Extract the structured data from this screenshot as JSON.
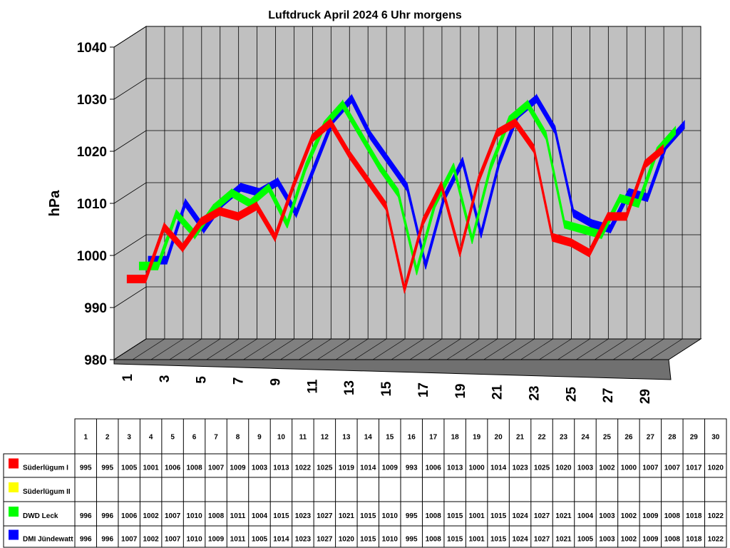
{
  "chart_data": {
    "type": "line",
    "style": "3d-ribbon",
    "title": "Luftdruck April 2024 6 Uhr morgens",
    "ylabel": "hPa",
    "xlabel": "",
    "ylim": [
      980,
      1040
    ],
    "yticks": [
      980,
      990,
      1000,
      1010,
      1020,
      1030,
      1040
    ],
    "x": [
      1,
      2,
      3,
      4,
      5,
      6,
      7,
      8,
      9,
      10,
      11,
      12,
      13,
      14,
      15,
      16,
      17,
      18,
      19,
      20,
      21,
      22,
      23,
      24,
      25,
      26,
      27,
      28,
      29,
      30
    ],
    "xtick_labels": [
      "1",
      "3",
      "5",
      "7",
      "9",
      "11",
      "13",
      "15",
      "17",
      "19",
      "21",
      "23",
      "25",
      "27",
      "29"
    ],
    "grid": true,
    "legend": "table-below",
    "series": [
      {
        "name": "Süderlügum I",
        "color": "#ff0000",
        "values": [
          995,
          995,
          1005,
          1001,
          1006,
          1008,
          1007,
          1009,
          1003,
          1013,
          1022,
          1025,
          1019,
          1014,
          1009,
          993,
          1006,
          1013,
          1000,
          1014,
          1023,
          1025,
          1020,
          1003,
          1002,
          1000,
          1007,
          1007,
          1017,
          1020
        ]
      },
      {
        "name": "Süderlügum II",
        "color": "#ffff00",
        "values": [
          null,
          null,
          null,
          null,
          null,
          null,
          null,
          null,
          null,
          null,
          null,
          null,
          null,
          null,
          null,
          null,
          null,
          null,
          null,
          null,
          null,
          null,
          null,
          null,
          null,
          null,
          null,
          null,
          null,
          null
        ]
      },
      {
        "name": "DWD Leck",
        "color": "#00ff00",
        "values": [
          996,
          996,
          1006,
          1002,
          1007,
          1010,
          1008,
          1011,
          1004,
          1015,
          1023,
          1027,
          1021,
          1015,
          1010,
          995,
          1008,
          1015,
          1001,
          1015,
          1024,
          1027,
          1021,
          1004,
          1003,
          1002,
          1009,
          1008,
          1018,
          1022
        ]
      },
      {
        "name": "DMI Jündewatt",
        "color": "#0000ff",
        "values": [
          996,
          996,
          1007,
          1002,
          1007,
          1010,
          1009,
          1011,
          1005,
          1014,
          1023,
          1027,
          1020,
          1015,
          1010,
          995,
          1008,
          1015,
          1001,
          1015,
          1024,
          1027,
          1021,
          1005,
          1003,
          1002,
          1009,
          1008,
          1018,
          1022
        ]
      }
    ]
  }
}
